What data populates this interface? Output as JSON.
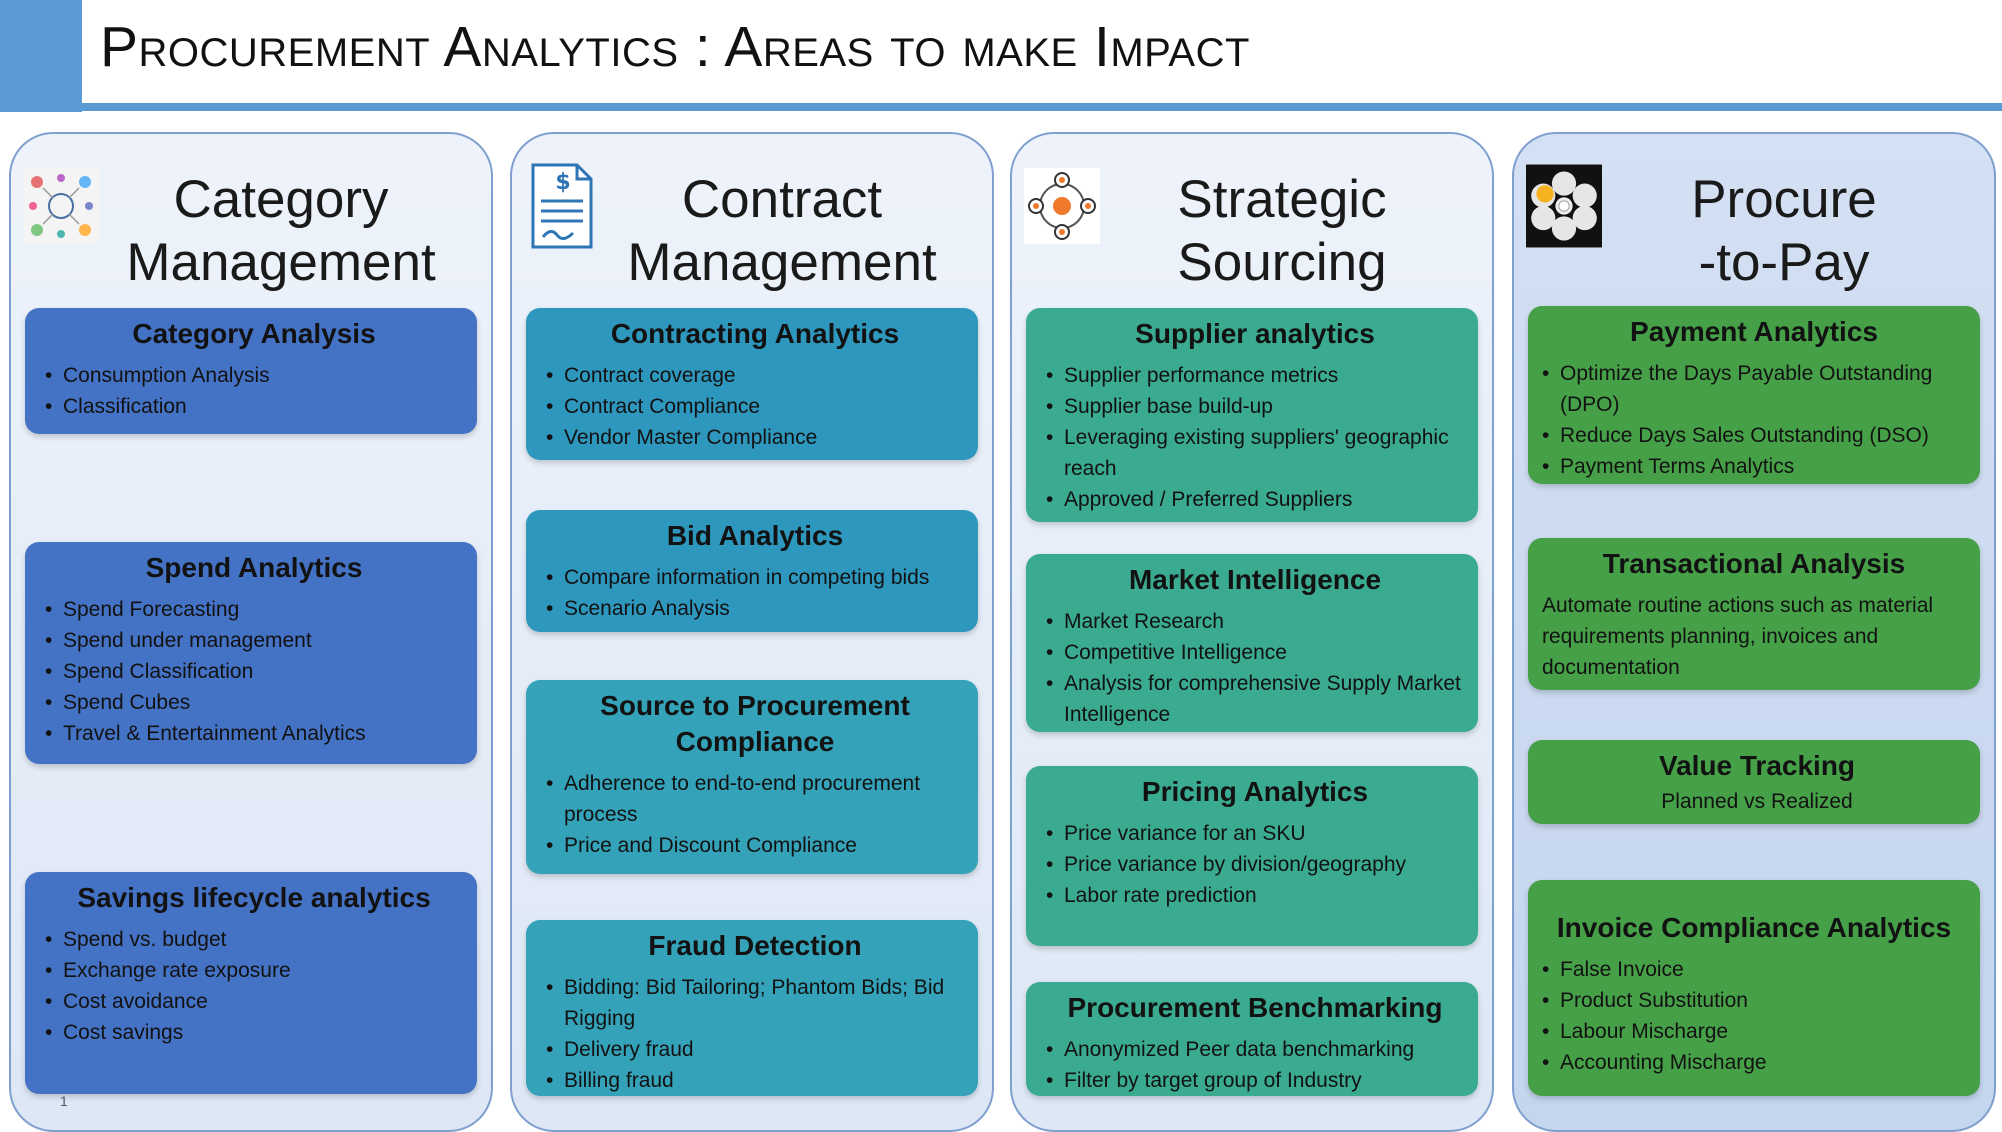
{
  "title": "Procurement Analytics : Areas to make Impact",
  "colors": {
    "accent": "#5b9bd5",
    "category": "#4472c4",
    "contract": "#2e97bd",
    "strategic": "#3aaa90",
    "ptp": "#46a048"
  },
  "columns": [
    {
      "title": "Category\nManagement",
      "icon": "category-collage-icon",
      "cards": [
        {
          "title": "Category Analysis",
          "items": [
            "Consumption Analysis",
            "Classification"
          ]
        },
        {
          "title": "Spend Analytics",
          "items": [
            "Spend Forecasting",
            "Spend under management",
            "Spend Classification",
            "Spend Cubes",
            "Travel & Entertainment Analytics"
          ]
        },
        {
          "title": "Savings lifecycle analytics",
          "items": [
            "Spend vs. budget",
            "Exchange rate exposure",
            "Cost avoidance",
            "Cost savings"
          ]
        }
      ]
    },
    {
      "title": "Contract\nManagement",
      "icon": "contract-document-icon",
      "cards": [
        {
          "title": "Contracting Analytics",
          "items": [
            "Contract coverage",
            "Contract Compliance",
            "Vendor Master Compliance"
          ]
        },
        {
          "title": "Bid Analytics",
          "items": [
            "Compare information in competing bids",
            "Scenario Analysis"
          ]
        },
        {
          "title": "Source to Procurement Compliance",
          "items": [
            "Adherence to end-to-end procurement process",
            "Price and Discount Compliance"
          ]
        },
        {
          "title": "Fraud Detection",
          "items": [
            "Bidding: Bid Tailoring; Phantom Bids; Bid Rigging",
            "Delivery fraud",
            "Billing fraud"
          ]
        }
      ]
    },
    {
      "title": "Strategic\nSourcing",
      "icon": "sourcing-network-icon",
      "cards": [
        {
          "title": "Supplier analytics",
          "items": [
            "Supplier performance metrics",
            "Supplier base build-up",
            "Leveraging existing suppliers' geographic reach",
            "Approved / Preferred Suppliers"
          ]
        },
        {
          "title": "Market Intelligence",
          "items": [
            "Market Research",
            "Competitive Intelligence",
            "Analysis for comprehensive Supply Market Intelligence"
          ]
        },
        {
          "title": "Pricing Analytics",
          "items": [
            "Price variance for an SKU",
            "Price variance by division/geography",
            "Labor rate prediction"
          ]
        },
        {
          "title": "Procurement Benchmarking",
          "items": [
            "Anonymized Peer data benchmarking",
            "Filter by target group of Industry"
          ]
        }
      ]
    },
    {
      "title": "Procure\n-to-Pay",
      "icon": "procure-flower-icon",
      "cards": [
        {
          "title": "Payment Analytics",
          "items": [
            "Optimize the Days Payable Outstanding (DPO)",
            "Reduce Days Sales Outstanding (DSO)",
            "Payment Terms Analytics"
          ]
        },
        {
          "title": "Transactional Analysis",
          "text": "Automate routine actions such as material requirements planning, invoices and documentation"
        },
        {
          "title": "Value Tracking",
          "subtitle": "Planned vs Realized"
        },
        {
          "title": "Invoice Compliance Analytics",
          "items": [
            "False Invoice",
            "Product Substitution",
            "Labour Mischarge",
            "Accounting Mischarge"
          ]
        }
      ]
    }
  ],
  "page_number": "1"
}
